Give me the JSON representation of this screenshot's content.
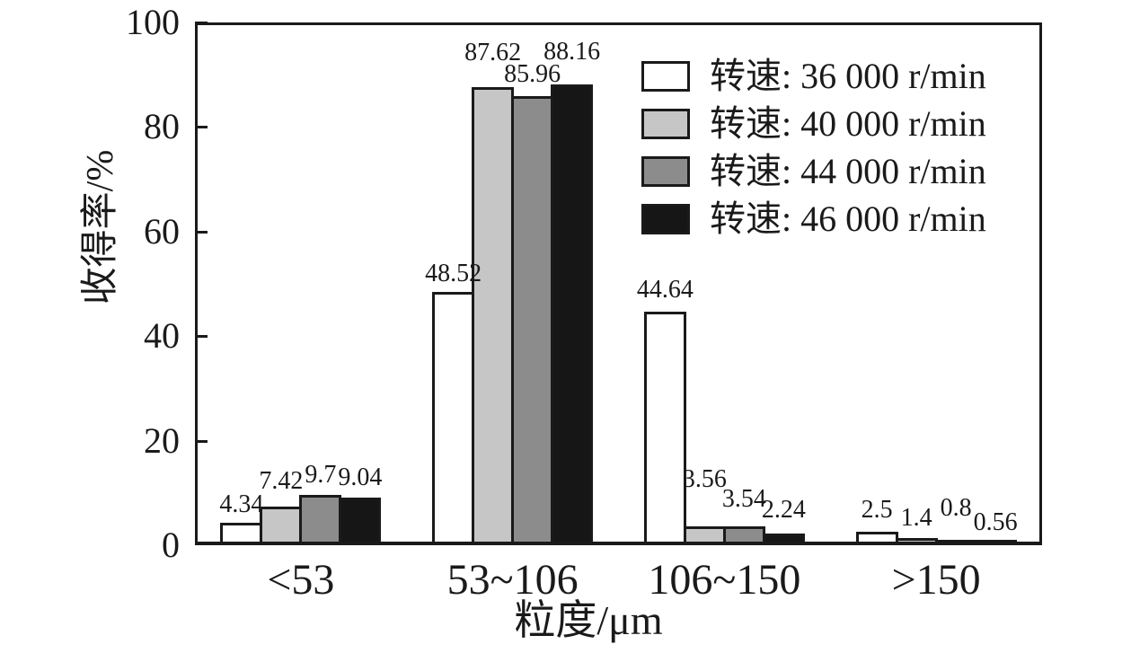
{
  "chart_data": {
    "type": "bar",
    "title": "",
    "xlabel": "粒度/μm",
    "ylabel": "收得率/%",
    "categories": [
      "<53",
      "53~106",
      "106~150",
      ">150"
    ],
    "series": [
      {
        "name": "转速: 36 000 r/min",
        "color": "#ffffff",
        "values": [
          4.34,
          48.52,
          44.64,
          2.5
        ]
      },
      {
        "name": "转速: 40 000 r/min",
        "color": "#c6c6c6",
        "values": [
          7.42,
          87.62,
          3.56,
          1.4
        ]
      },
      {
        "name": "转速: 44 000 r/min",
        "color": "#8c8c8c",
        "values": [
          9.7,
          85.96,
          3.54,
          0.8
        ]
      },
      {
        "name": "转速: 46 000 r/min",
        "color": "#161616",
        "values": [
          9.04,
          88.16,
          2.24,
          0.56
        ]
      }
    ],
    "ylim": [
      0,
      100
    ],
    "yticks": [
      0,
      20,
      40,
      60,
      80,
      100
    ],
    "tick_marks": [
      20,
      40,
      60,
      80,
      100
    ],
    "grid": false,
    "bar_value_labels": true,
    "legend_position": "top-right",
    "frame_color": "#1a1a1a",
    "text_color": "#1a1a1a"
  }
}
